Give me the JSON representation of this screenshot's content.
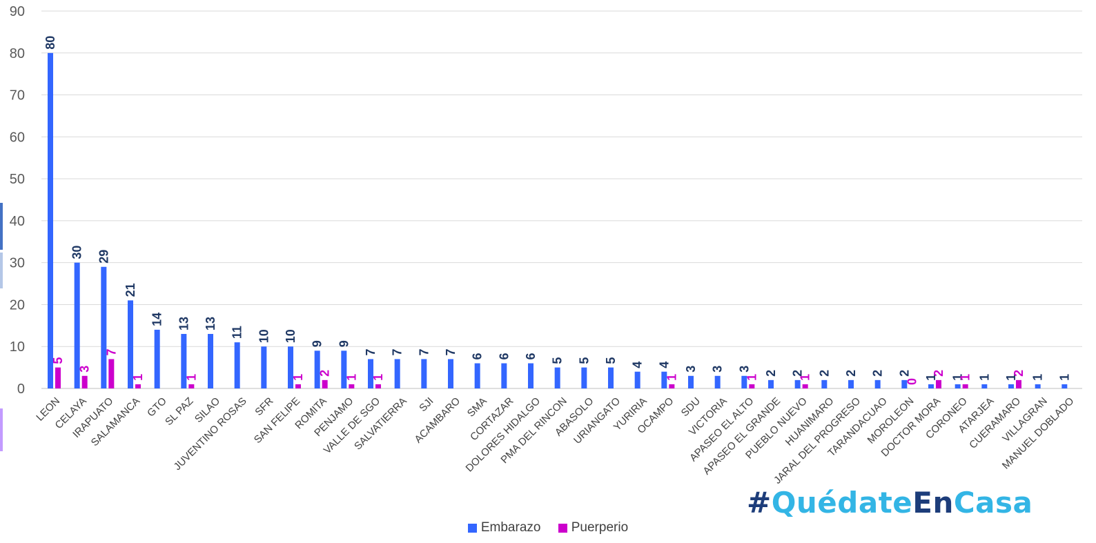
{
  "chart_data": {
    "type": "bar",
    "title": "",
    "xlabel": "",
    "ylabel": "",
    "ylim": [
      0,
      90
    ],
    "yticks": [
      0,
      10,
      20,
      30,
      40,
      50,
      60,
      70,
      80,
      90
    ],
    "grid": true,
    "legend_position": "bottom",
    "categories": [
      "LEON",
      "CELAYA",
      "IRAPUATO",
      "SALAMANCA",
      "GTO",
      "SL PAZ",
      "SILAO",
      "JUVENTINO ROSAS",
      "SFR",
      "SAN FELIPE",
      "ROMITA",
      "PENJAMO",
      "VALLE DE SGO",
      "SALVATIERRA",
      "SJI",
      "ACAMBARO",
      "SMA",
      "CORTAZAR",
      "DOLORES HIDALGO",
      "PMA DEL RINCON",
      "ABASOLO",
      "URIANGATO",
      "YURIRIA",
      "OCAMPO",
      "SDU",
      "VICTORIA",
      "APASEO EL ALTO",
      "APASEO EL GRANDE",
      "PUEBLO NUEVO",
      "HUANIMARO",
      "JARAL DEL PROGRESO",
      "TARANDACUAO",
      "MOROLEON",
      "DOCTOR MORA",
      "CORONEO",
      "ATARJEA",
      "CUERAMARO",
      "VILLAGRAN",
      "MANUEL DOBLADO"
    ],
    "series": [
      {
        "name": "Embarazo",
        "color": "#3366ff",
        "label_color": "#1f3864",
        "values": [
          80,
          30,
          29,
          21,
          14,
          13,
          13,
          11,
          10,
          10,
          9,
          9,
          7,
          7,
          7,
          7,
          6,
          6,
          6,
          5,
          5,
          5,
          4,
          4,
          3,
          3,
          3,
          2,
          2,
          2,
          2,
          2,
          2,
          1,
          1,
          1,
          1,
          1,
          1
        ],
        "labels": [
          "80",
          "30",
          "29",
          "21",
          "14",
          "13",
          "13",
          "11",
          "10",
          "10",
          "9",
          "9",
          "7",
          "7",
          "7",
          "7",
          "6",
          "6",
          "6",
          "5",
          "5",
          "5",
          "4",
          "4",
          "3",
          "3",
          "3",
          "2",
          "2",
          "2",
          "2",
          "2",
          "2",
          "1",
          "1",
          "1",
          "1",
          "1",
          "1"
        ]
      },
      {
        "name": "Puerperio",
        "color": "#cc00cc",
        "label_color": "#cc00cc",
        "values": [
          5,
          3,
          7,
          1,
          null,
          1,
          null,
          null,
          null,
          1,
          2,
          1,
          1,
          null,
          null,
          null,
          null,
          null,
          null,
          null,
          null,
          null,
          null,
          1,
          null,
          null,
          1,
          null,
          1,
          null,
          null,
          null,
          0,
          2,
          1,
          null,
          2,
          null,
          null
        ],
        "labels": [
          "5",
          "3",
          "7",
          "1",
          "",
          "1",
          "",
          "",
          "",
          "1",
          "2",
          "1",
          "1",
          "",
          "",
          "",
          "",
          "",
          "",
          "",
          "",
          "",
          "",
          "1",
          "",
          "",
          "1",
          "",
          "1",
          "",
          "",
          "",
          "0",
          "2",
          "1",
          "",
          "2",
          "",
          ""
        ]
      }
    ]
  },
  "watermark": {
    "hash": "#",
    "part1": "Quédate",
    "part2": "En",
    "part3": "Casa"
  },
  "colors": {
    "gridline": "#d9d9d9",
    "axis": "#bfbfbf",
    "hashtag_dark": "#1d3d7a",
    "hashtag_light": "#33b5e5"
  }
}
